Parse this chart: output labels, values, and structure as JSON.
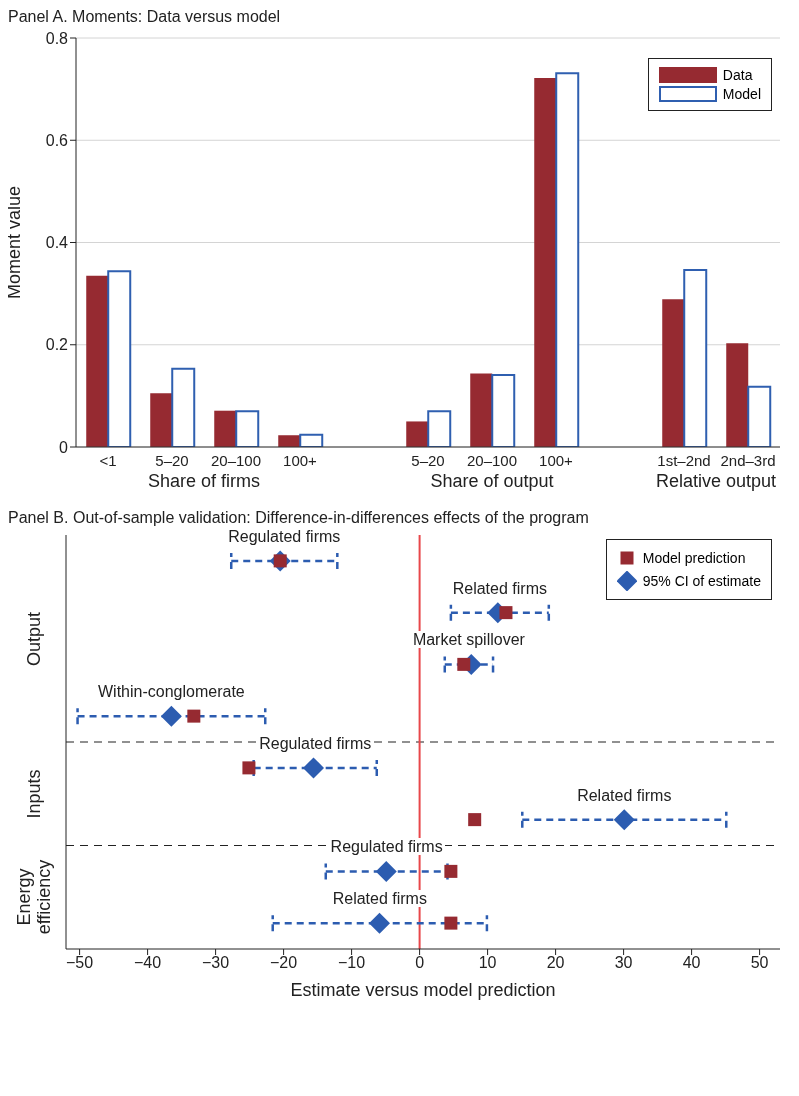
{
  "chart_data": [
    {
      "type": "bar",
      "title": "Panel A. Moments: Data versus model",
      "ylabel": "Moment value",
      "categories": [
        "<1",
        "5–20",
        "20–100",
        "100+",
        null,
        "5–20",
        "20–100",
        "100+",
        null,
        "1st–2nd",
        "2nd–3rd"
      ],
      "series": [
        {
          "name": "Data",
          "color": "#962a31",
          "values": [
            0.335,
            0.105,
            0.071,
            0.023,
            null,
            0.05,
            0.144,
            0.722,
            null,
            0.289,
            0.203
          ]
        },
        {
          "name": "Model",
          "color": "#2f5fb0",
          "values": [
            0.344,
            0.153,
            0.07,
            0.024,
            null,
            0.07,
            0.141,
            0.731,
            null,
            0.346,
            0.118
          ]
        }
      ],
      "ylim": [
        0,
        0.8
      ],
      "yticks": [
        0,
        0.2,
        0.4,
        0.6,
        0.8
      ],
      "grid": "y",
      "legend": "top right",
      "annotations": [
        "Share of firms",
        "Share of output",
        "Relative output"
      ]
    },
    {
      "type": "scatter",
      "orientation": "horizontal",
      "title": "Panel B. Out-of-sample validation: Difference-in-differences effects of the program",
      "xlabel": "Estimate versus model prediction",
      "categories": [
        null,
        null,
        null,
        null,
        null,
        null,
        null,
        null
      ],
      "series": [
        {
          "name": "Model prediction",
          "color": "#962a31",
          "marker": "square",
          "values": [
            -20.5,
            12.7,
            6.5,
            -33.2,
            -25.1,
            8.1,
            4.6,
            4.6
          ]
        },
        {
          "name": "95% CI of estimate",
          "color": "#2c5cb0",
          "marker": "diamond",
          "values": [
            -20.5,
            11.5,
            7.6,
            -36.5,
            -15.6,
            30.1,
            -4.9,
            -5.9
          ],
          "errors": [
            [
              -27.7,
              -12.1
            ],
            [
              4.6,
              19.0
            ],
            [
              3.7,
              10.8
            ],
            [
              -50.3,
              -22.7
            ],
            [
              -24.4,
              -6.3
            ],
            [
              15.1,
              45.1
            ],
            [
              -13.8,
              4.1
            ],
            [
              -21.6,
              9.9
            ]
          ]
        }
      ],
      "xlim": [
        -52,
        53
      ],
      "xticks": [
        {
          "value": -50,
          "label": "−50"
        },
        {
          "value": -40,
          "label": "−40"
        },
        {
          "value": -30,
          "label": "−30"
        },
        {
          "value": -20,
          "label": "−20"
        },
        {
          "value": -10,
          "label": "−10"
        },
        0,
        10,
        20,
        30,
        40,
        50
      ],
      "grid": false,
      "legend": "top right",
      "ref_lines": [
        {
          "axis": "x",
          "value": 0,
          "color": "#e8474a"
        }
      ],
      "annotations": [
        "Regulated firms",
        "Related firms",
        "Market spillover",
        "Within-conglomerate",
        "Regulated firms",
        "Related firms",
        "Regulated firms",
        "Related firms",
        "Output",
        "Inputs",
        "Energy efficiency"
      ]
    }
  ]
}
